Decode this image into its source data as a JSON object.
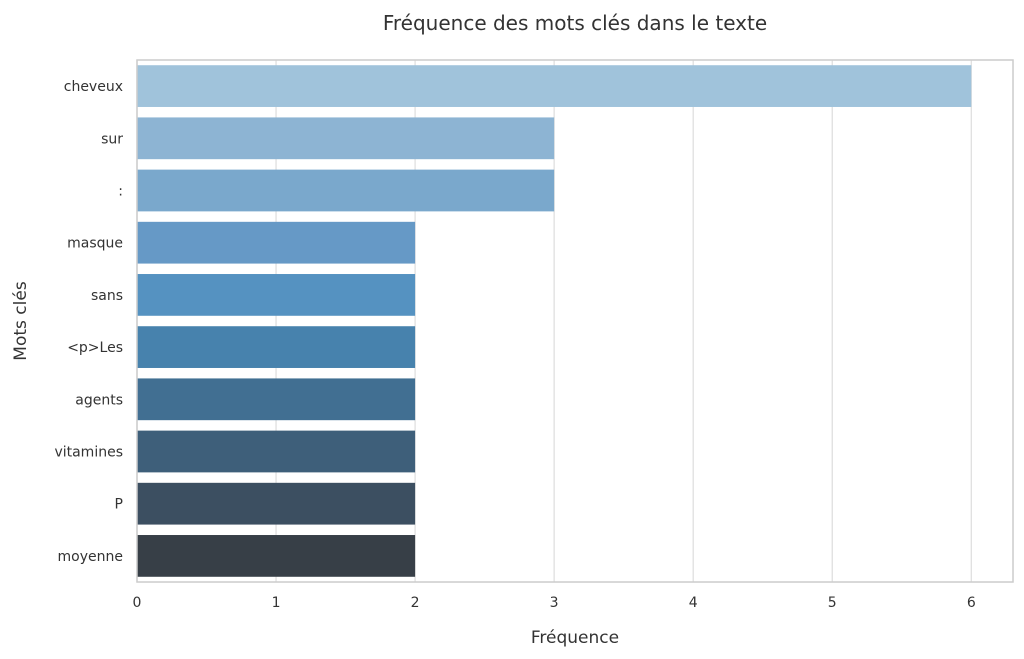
{
  "chart_data": {
    "type": "bar",
    "orientation": "horizontal",
    "title": "Fréquence des mots clés dans le texte",
    "xlabel": "Fréquence",
    "ylabel": "Mots clés",
    "categories": [
      "cheveux",
      "sur",
      ":",
      "masque",
      "sans",
      "<p>Les",
      "agents",
      "vitamines",
      "P",
      "moyenne"
    ],
    "values": [
      6,
      3,
      3,
      2,
      2,
      2,
      2,
      2,
      2,
      2
    ],
    "xlim": [
      0,
      6.3
    ],
    "xticks": [
      0,
      1,
      2,
      3,
      4,
      5,
      6
    ],
    "grid": true,
    "colors": [
      "#a0c3db",
      "#8db4d3",
      "#7aa8cc",
      "#6699c6",
      "#5592c1",
      "#4782ad",
      "#416f92",
      "#3e5f7a",
      "#3c4f61",
      "#373f47"
    ]
  }
}
